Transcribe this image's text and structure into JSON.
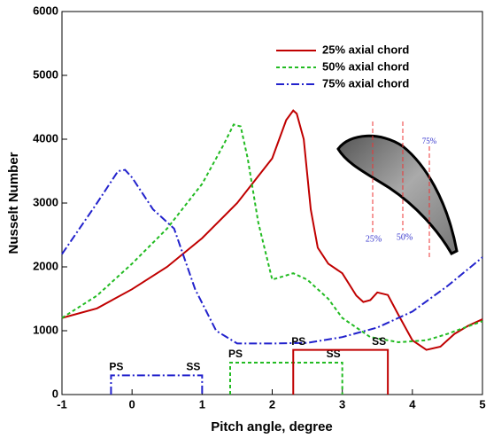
{
  "chart_data": {
    "type": "line",
    "x_label": "Pitch angle, degree",
    "y_label": "Nusselt Number",
    "xlim": [
      -1,
      5
    ],
    "ylim": [
      0,
      6000
    ],
    "xticks": [
      -1,
      0,
      1,
      2,
      3,
      4,
      5
    ],
    "yticks": [
      0,
      1000,
      2000,
      3000,
      4000,
      5000,
      6000
    ],
    "legend": "upper right",
    "series": [
      {
        "name": "25% axial chord",
        "color": "#c00000",
        "dash": "solid",
        "x": [
          -1,
          -0.5,
          0,
          0.5,
          1,
          1.5,
          2,
          2.2,
          2.3,
          2.35,
          2.45,
          2.55,
          2.65,
          2.8,
          3,
          3.2,
          3.3,
          3.4,
          3.5,
          3.65,
          3.8,
          4,
          4.2,
          4.4,
          4.6,
          4.8,
          5
        ],
        "values": [
          1200,
          1350,
          1650,
          2000,
          2450,
          3000,
          3700,
          4300,
          4450,
          4400,
          4000,
          2900,
          2300,
          2050,
          1900,
          1550,
          1450,
          1480,
          1600,
          1560,
          1250,
          850,
          700,
          750,
          950,
          1080,
          1180
        ]
      },
      {
        "name": "50% axial chord",
        "color": "#22bb22",
        "dash": "dashed",
        "x": [
          -1,
          -0.5,
          0,
          0.5,
          1,
          1.3,
          1.45,
          1.55,
          1.65,
          1.8,
          2,
          2.3,
          2.5,
          2.8,
          3,
          3.4,
          3.8,
          4.2,
          4.5,
          5
        ],
        "values": [
          1200,
          1550,
          2050,
          2600,
          3300,
          3900,
          4230,
          4200,
          3700,
          2700,
          1800,
          1900,
          1800,
          1500,
          1200,
          900,
          820,
          850,
          950,
          1150
        ]
      },
      {
        "name": "75% axial chord",
        "color": "#2222cc",
        "dash": "dashdot",
        "x": [
          -1,
          -0.5,
          -0.2,
          -0.1,
          0,
          0.3,
          0.6,
          0.9,
          1.2,
          1.5,
          2,
          2.5,
          3,
          3.5,
          4,
          4.5,
          5
        ],
        "values": [
          2200,
          3000,
          3500,
          3520,
          3400,
          2900,
          2600,
          1650,
          1000,
          800,
          800,
          810,
          900,
          1050,
          1300,
          1700,
          2150
        ]
      }
    ],
    "regions": [
      {
        "x": [
          -0.3,
          1.0
        ],
        "height": 300,
        "labels": [
          "PS",
          "SS"
        ]
      },
      {
        "x": [
          1.4,
          3.0
        ],
        "height": 500,
        "labels": [
          "PS",
          "SS"
        ]
      },
      {
        "x": [
          2.3,
          3.65
        ],
        "height": 700,
        "labels": [
          "PS",
          "SS"
        ]
      }
    ],
    "region_series": [
      2,
      1,
      0
    ],
    "inset_labels": [
      "25%",
      "50%",
      "75%"
    ]
  }
}
